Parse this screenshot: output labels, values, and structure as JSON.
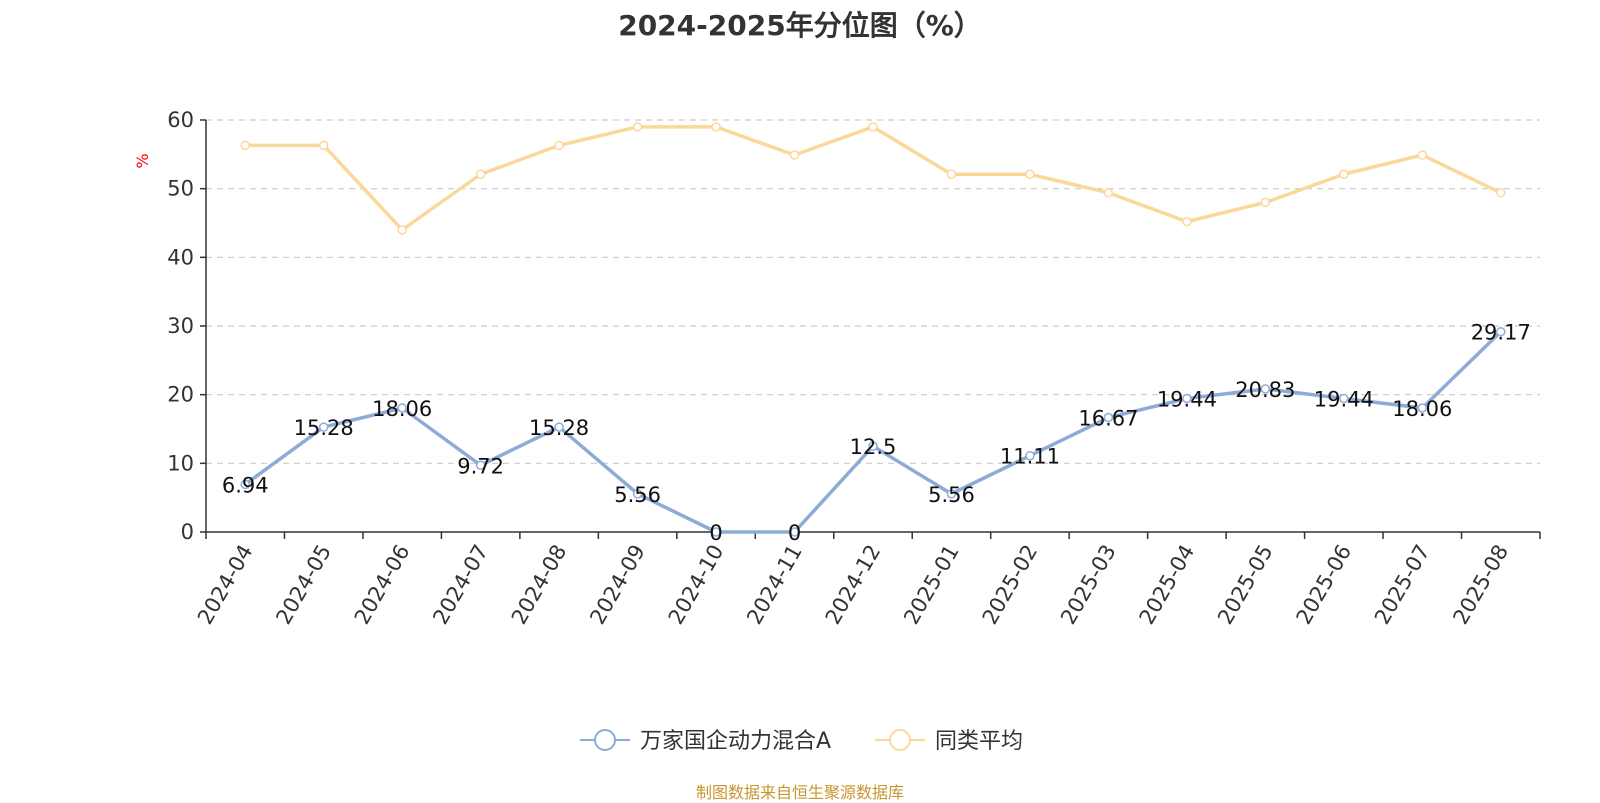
{
  "chart_data": {
    "type": "line",
    "title": "2024-2025年分位图（%）",
    "ylabel": "%",
    "xlabel": "",
    "ylim": [
      0,
      60
    ],
    "yticks": [
      0,
      10,
      20,
      30,
      40,
      50,
      60
    ],
    "grid": true,
    "legend_position": "bottom-center",
    "categories": [
      "2024-04",
      "2024-05",
      "2024-06",
      "2024-07",
      "2024-08",
      "2024-09",
      "2024-10",
      "2024-11",
      "2024-12",
      "2025-01",
      "2025-02",
      "2025-03",
      "2025-04",
      "2025-05",
      "2025-06",
      "2025-07",
      "2025-08"
    ],
    "series": [
      {
        "name": "万家国企动力混合A",
        "color": "#8eabd8",
        "show_labels": true,
        "values": [
          6.94,
          15.28,
          18.06,
          9.72,
          15.28,
          5.56,
          0,
          0,
          12.5,
          5.56,
          11.11,
          16.67,
          19.44,
          20.83,
          19.44,
          18.06,
          29.17
        ]
      },
      {
        "name": "同类平均",
        "color": "#fbd89a",
        "show_labels": false,
        "values": [
          56.3,
          56.3,
          44.0,
          52.1,
          56.3,
          59.0,
          59.0,
          54.9,
          59.0,
          52.1,
          52.1,
          49.4,
          45.2,
          48.0,
          52.1,
          54.9,
          49.4
        ]
      }
    ]
  },
  "source_note": "制图数据来自恒生聚源数据库"
}
